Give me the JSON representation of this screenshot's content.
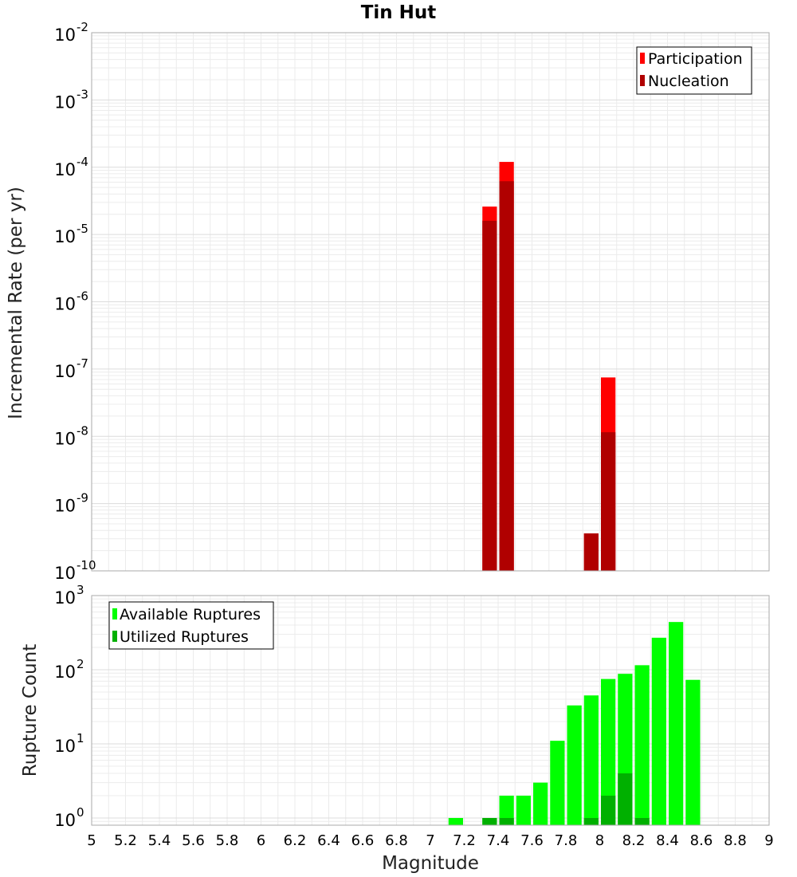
{
  "figure_title": "Tin Hut",
  "chart_data": [
    {
      "type": "bar",
      "title": "Tin Hut",
      "ylabel": "Incremental Rate (per yr)",
      "xlabel": "",
      "y_scale": "log",
      "ylim": [
        1e-10,
        0.01
      ],
      "xlim": [
        5.0,
        9.0
      ],
      "y_tick_base": "10",
      "y_tick_exponents": [
        "-10",
        "-9",
        "-8",
        "-7",
        "-6",
        "-5",
        "-4",
        "-3",
        "-2"
      ],
      "bin_width": 0.1,
      "legend": "top-right",
      "grid": true,
      "series": [
        {
          "name": "Participation",
          "color": "#ff0000",
          "points": [
            {
              "x": 7.35,
              "y": 2.6e-05
            },
            {
              "x": 7.45,
              "y": 0.00012
            },
            {
              "x": 7.95,
              "y": 3.6e-10
            },
            {
              "x": 8.05,
              "y": 7.5e-08
            }
          ]
        },
        {
          "name": "Nucleation",
          "color": "#b00000",
          "points": [
            {
              "x": 7.35,
              "y": 1.6e-05
            },
            {
              "x": 7.45,
              "y": 6.2e-05
            },
            {
              "x": 7.95,
              "y": 3.6e-10
            },
            {
              "x": 8.05,
              "y": 1.15e-08
            }
          ]
        }
      ]
    },
    {
      "type": "bar",
      "title": "",
      "ylabel": "Rupture Count",
      "xlabel": "Magnitude",
      "y_scale": "log",
      "ylim": [
        0.8,
        1000
      ],
      "xlim": [
        5.0,
        9.0
      ],
      "y_tick_base": "10",
      "y_tick_exponents": [
        "0",
        "1",
        "2",
        "3"
      ],
      "x_tick_labels": [
        "5",
        "5.2",
        "5.4",
        "5.6",
        "5.8",
        "6",
        "6.2",
        "6.4",
        "6.6",
        "6.8",
        "7",
        "7.2",
        "7.4",
        "7.6",
        "7.8",
        "8",
        "8.2",
        "8.4",
        "8.6",
        "8.8",
        "9"
      ],
      "bin_width": 0.1,
      "legend": "top-left",
      "grid": true,
      "series": [
        {
          "name": "Available Ruptures",
          "color": "#00ff00",
          "points": [
            {
              "x": 7.15,
              "y": 1
            },
            {
              "x": 7.35,
              "y": 1
            },
            {
              "x": 7.45,
              "y": 2
            },
            {
              "x": 7.55,
              "y": 2
            },
            {
              "x": 7.65,
              "y": 3
            },
            {
              "x": 7.75,
              "y": 11
            },
            {
              "x": 7.85,
              "y": 33
            },
            {
              "x": 7.95,
              "y": 45
            },
            {
              "x": 8.05,
              "y": 75
            },
            {
              "x": 8.15,
              "y": 88
            },
            {
              "x": 8.25,
              "y": 115
            },
            {
              "x": 8.35,
              "y": 270
            },
            {
              "x": 8.45,
              "y": 440
            },
            {
              "x": 8.55,
              "y": 73
            }
          ]
        },
        {
          "name": "Utilized Ruptures",
          "color": "#00b000",
          "points": [
            {
              "x": 7.35,
              "y": 1
            },
            {
              "x": 7.45,
              "y": 1
            },
            {
              "x": 7.95,
              "y": 1
            },
            {
              "x": 8.05,
              "y": 2
            },
            {
              "x": 8.15,
              "y": 4
            },
            {
              "x": 8.25,
              "y": 1
            }
          ]
        }
      ]
    }
  ]
}
